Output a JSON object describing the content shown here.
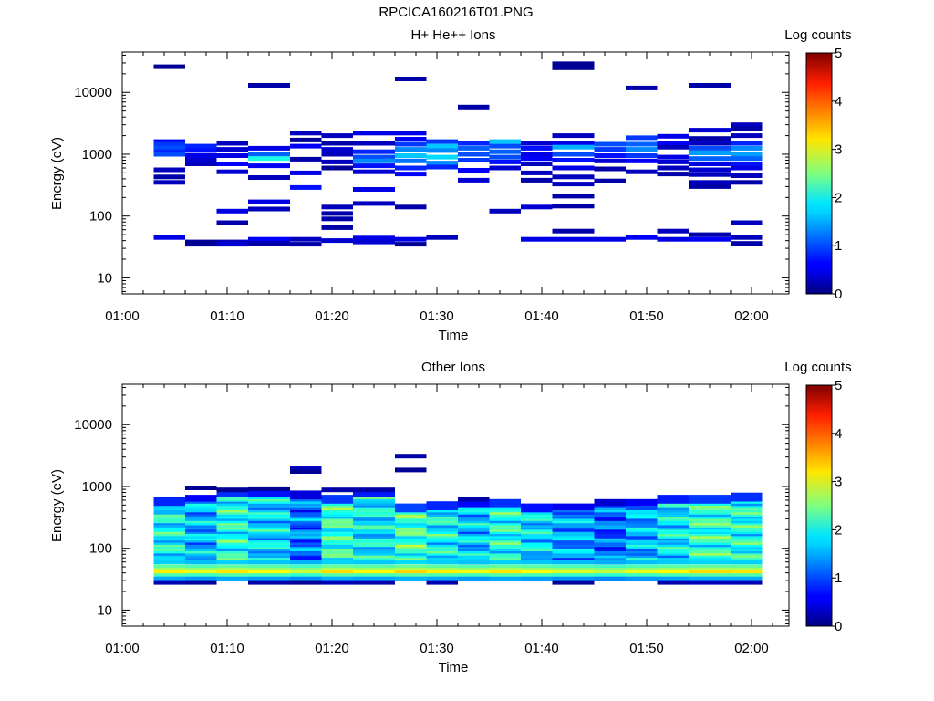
{
  "figure_title": "RPCICA160216T01.PNG",
  "chart_data": [
    {
      "type": "heatmap",
      "title": "H+ He++ Ions",
      "xlabel": "Time",
      "ylabel": "Energy (eV)",
      "colorbar_label": "Log counts",
      "x_ticks": [
        "01:00",
        "01:10",
        "01:20",
        "01:30",
        "01:40",
        "01:50",
        "02:00"
      ],
      "xlim_minutes": [
        0,
        63
      ],
      "y_scale": "log",
      "ylim": [
        5.5,
        45000
      ],
      "y_ticks": [
        10,
        100,
        1000,
        10000
      ],
      "y_tick_labels": [
        "10",
        "100",
        "1000",
        "10000"
      ],
      "colorbar_ticks": [
        "0",
        "1",
        "2",
        "3",
        "4",
        "5"
      ],
      "clim": [
        0,
        5
      ],
      "colormap": "jet",
      "bins_minutes": [
        [
          3,
          6
        ],
        [
          6,
          9
        ],
        [
          9,
          12
        ],
        [
          12,
          16
        ],
        [
          16,
          19
        ],
        [
          19,
          22
        ],
        [
          22,
          26
        ],
        [
          26,
          29
        ],
        [
          29,
          32
        ],
        [
          32,
          35
        ],
        [
          35,
          38
        ],
        [
          38,
          41
        ],
        [
          41,
          45
        ],
        [
          45,
          48
        ],
        [
          48,
          51
        ],
        [
          51,
          54
        ],
        [
          54,
          58
        ],
        [
          58,
          61
        ]
      ],
      "cells": [
        [
          0,
          26000,
          0.1
        ],
        [
          0,
          1600,
          0.6
        ],
        [
          0,
          1450,
          0.9
        ],
        [
          0,
          1250,
          1.0
        ],
        [
          0,
          1100,
          0.8
        ],
        [
          0,
          1000,
          1.0
        ],
        [
          0,
          560,
          0.3
        ],
        [
          0,
          430,
          0.2
        ],
        [
          0,
          350,
          0.3
        ],
        [
          0,
          45,
          0.5
        ],
        [
          1,
          1350,
          0.8
        ],
        [
          1,
          1150,
          0.7
        ],
        [
          1,
          950,
          0.5
        ],
        [
          1,
          800,
          0.4
        ],
        [
          1,
          700,
          0.3
        ],
        [
          1,
          38,
          0.1
        ],
        [
          1,
          35,
          0.1
        ],
        [
          2,
          1500,
          0.3
        ],
        [
          2,
          1200,
          0.4
        ],
        [
          2,
          950,
          0.5
        ],
        [
          2,
          700,
          0.6
        ],
        [
          2,
          520,
          0.4
        ],
        [
          2,
          120,
          0.5
        ],
        [
          2,
          78,
          0.2
        ],
        [
          2,
          38,
          0.3
        ],
        [
          2,
          35,
          0.4
        ],
        [
          3,
          13000,
          0.2
        ],
        [
          3,
          1250,
          0.5
        ],
        [
          3,
          1000,
          1.1
        ],
        [
          3,
          850,
          2.0
        ],
        [
          3,
          650,
          0.6
        ],
        [
          3,
          420,
          0.3
        ],
        [
          3,
          170,
          0.5
        ],
        [
          3,
          130,
          0.3
        ],
        [
          3,
          42,
          0.6
        ],
        [
          3,
          36,
          0.2
        ],
        [
          4,
          2200,
          0.3
        ],
        [
          4,
          1700,
          0.1
        ],
        [
          4,
          1350,
          0.6
        ],
        [
          4,
          830,
          0.2
        ],
        [
          4,
          500,
          0.5
        ],
        [
          4,
          290,
          0.7
        ],
        [
          4,
          42,
          0.3
        ],
        [
          4,
          35,
          0.2
        ],
        [
          5,
          2000,
          0.3
        ],
        [
          5,
          1500,
          0.2
        ],
        [
          5,
          1200,
          0.4
        ],
        [
          5,
          1000,
          0.3
        ],
        [
          5,
          750,
          0.3
        ],
        [
          5,
          600,
          0.1
        ],
        [
          5,
          140,
          0.3
        ],
        [
          5,
          110,
          0.2
        ],
        [
          5,
          90,
          0.2
        ],
        [
          5,
          65,
          0.2
        ],
        [
          5,
          40,
          0.4
        ],
        [
          6,
          2200,
          0.5
        ],
        [
          6,
          1500,
          0.3
        ],
        [
          6,
          1100,
          0.8
        ],
        [
          6,
          900,
          1.0
        ],
        [
          6,
          780,
          1.3
        ],
        [
          6,
          650,
          0.7
        ],
        [
          6,
          520,
          0.4
        ],
        [
          6,
          270,
          0.5
        ],
        [
          6,
          160,
          0.3
        ],
        [
          6,
          44,
          0.5
        ],
        [
          6,
          38,
          0.4
        ],
        [
          7,
          16500,
          0.2
        ],
        [
          7,
          2200,
          0.5
        ],
        [
          7,
          1750,
          0.6
        ],
        [
          7,
          1450,
          0.9
        ],
        [
          7,
          1200,
          1.3
        ],
        [
          7,
          950,
          1.6
        ],
        [
          7,
          780,
          1.2
        ],
        [
          7,
          600,
          0.8
        ],
        [
          7,
          480,
          0.6
        ],
        [
          7,
          140,
          0.2
        ],
        [
          7,
          42,
          0.5
        ],
        [
          7,
          35,
          0.1
        ],
        [
          8,
          1600,
          0.9
        ],
        [
          8,
          1350,
          1.6
        ],
        [
          8,
          1150,
          1.3
        ],
        [
          8,
          900,
          1.7
        ],
        [
          8,
          720,
          1.3
        ],
        [
          8,
          620,
          0.8
        ],
        [
          8,
          45,
          0.3
        ],
        [
          9,
          5800,
          0.2
        ],
        [
          9,
          1500,
          0.8
        ],
        [
          9,
          1250,
          1.1
        ],
        [
          9,
          1000,
          1.0
        ],
        [
          9,
          800,
          0.9
        ],
        [
          9,
          550,
          0.6
        ],
        [
          9,
          380,
          0.4
        ],
        [
          10,
          1600,
          1.6
        ],
        [
          10,
          1350,
          1.0
        ],
        [
          10,
          1100,
          1.1
        ],
        [
          10,
          900,
          1.0
        ],
        [
          10,
          750,
          0.7
        ],
        [
          10,
          600,
          0.4
        ],
        [
          10,
          120,
          0.3
        ],
        [
          11,
          1500,
          0.4
        ],
        [
          11,
          1250,
          0.7
        ],
        [
          11,
          1000,
          0.5
        ],
        [
          11,
          850,
          0.6
        ],
        [
          11,
          700,
          0.3
        ],
        [
          11,
          500,
          0.3
        ],
        [
          11,
          380,
          0.2
        ],
        [
          11,
          140,
          0.4
        ],
        [
          11,
          42,
          0.5
        ],
        [
          12,
          29000,
          0.1
        ],
        [
          12,
          25000,
          0.1
        ],
        [
          12,
          2000,
          0.3
        ],
        [
          12,
          1500,
          0.5
        ],
        [
          12,
          1300,
          1.5
        ],
        [
          12,
          1000,
          1.0
        ],
        [
          12,
          800,
          0.7
        ],
        [
          12,
          600,
          0.5
        ],
        [
          12,
          430,
          0.3
        ],
        [
          12,
          330,
          0.3
        ],
        [
          12,
          210,
          0.2
        ],
        [
          12,
          145,
          0.2
        ],
        [
          12,
          57,
          0.2
        ],
        [
          12,
          42,
          0.5
        ],
        [
          13,
          1450,
          1.0
        ],
        [
          13,
          1200,
          0.9
        ],
        [
          13,
          950,
          0.7
        ],
        [
          13,
          780,
          0.4
        ],
        [
          13,
          580,
          0.2
        ],
        [
          13,
          370,
          0.2
        ],
        [
          13,
          42,
          0.5
        ],
        [
          14,
          1850,
          0.9
        ],
        [
          14,
          1450,
          1.1
        ],
        [
          14,
          1200,
          1.3
        ],
        [
          14,
          950,
          0.9
        ],
        [
          14,
          780,
          0.6
        ],
        [
          14,
          11800,
          0.2
        ],
        [
          14,
          520,
          0.3
        ],
        [
          14,
          45,
          0.6
        ],
        [
          15,
          1950,
          0.5
        ],
        [
          15,
          1500,
          0.6
        ],
        [
          15,
          1300,
          0.3
        ],
        [
          15,
          900,
          0.5
        ],
        [
          15,
          750,
          0.4
        ],
        [
          15,
          600,
          0.3
        ],
        [
          15,
          480,
          0.2
        ],
        [
          15,
          57,
          0.3
        ],
        [
          15,
          42,
          0.5
        ],
        [
          16,
          13000,
          0.2
        ],
        [
          16,
          2450,
          0.4
        ],
        [
          16,
          1800,
          0.2
        ],
        [
          16,
          1500,
          0.3
        ],
        [
          16,
          1250,
          1.0
        ],
        [
          16,
          1050,
          1.4
        ],
        [
          16,
          850,
          1.1
        ],
        [
          16,
          700,
          0.5
        ],
        [
          16,
          560,
          0.4
        ],
        [
          16,
          470,
          0.3
        ],
        [
          16,
          350,
          0.3
        ],
        [
          16,
          300,
          0.2
        ],
        [
          16,
          50,
          0.2
        ],
        [
          16,
          42,
          0.6
        ],
        [
          17,
          3000,
          0.3
        ],
        [
          17,
          2600,
          0.2
        ],
        [
          17,
          2000,
          0.3
        ],
        [
          17,
          1500,
          0.8
        ],
        [
          17,
          1250,
          1.3
        ],
        [
          17,
          1000,
          1.4
        ],
        [
          17,
          850,
          1.1
        ],
        [
          17,
          700,
          0.7
        ],
        [
          17,
          600,
          0.5
        ],
        [
          17,
          450,
          0.3
        ],
        [
          17,
          350,
          0.2
        ],
        [
          17,
          78,
          0.3
        ],
        [
          17,
          45,
          0.3
        ],
        [
          17,
          36,
          0.2
        ]
      ]
    },
    {
      "type": "heatmap",
      "title": "Other Ions",
      "xlabel": "Time",
      "ylabel": "Energy (eV)",
      "colorbar_label": "Log counts",
      "x_ticks": [
        "01:00",
        "01:10",
        "01:20",
        "01:30",
        "01:40",
        "01:50",
        "02:00"
      ],
      "xlim_minutes": [
        0,
        63
      ],
      "y_scale": "log",
      "ylim": [
        5.5,
        45000
      ],
      "y_ticks": [
        10,
        100,
        1000,
        10000
      ],
      "y_tick_labels": [
        "10",
        "100",
        "1000",
        "10000"
      ],
      "colorbar_ticks": [
        "0",
        "1",
        "2",
        "3",
        "4",
        "5"
      ],
      "clim": [
        0,
        5
      ],
      "colormap": "jet",
      "bins_minutes": [
        [
          3,
          6
        ],
        [
          6,
          9
        ],
        [
          9,
          12
        ],
        [
          12,
          16
        ],
        [
          16,
          19
        ],
        [
          19,
          22
        ],
        [
          22,
          26
        ],
        [
          26,
          29
        ],
        [
          29,
          32
        ],
        [
          32,
          35
        ],
        [
          35,
          38
        ],
        [
          38,
          41
        ],
        [
          41,
          45
        ],
        [
          45,
          48
        ],
        [
          48,
          51
        ],
        [
          51,
          54
        ],
        [
          54,
          58
        ],
        [
          58,
          61
        ]
      ],
      "col_top_eV": [
        650,
        720,
        850,
        900,
        800,
        700,
        850,
        500,
        560,
        600,
        580,
        500,
        520,
        620,
        620,
        680,
        680,
        750
      ],
      "col_offsets": [
        0.2,
        -0.2,
        0.3,
        0.0,
        -0.5,
        0.4,
        0.1,
        0.5,
        0.2,
        -0.1,
        0.3,
        0.0,
        -0.3,
        -0.6,
        -0.2,
        0.1,
        0.4,
        0.3
      ],
      "low_energy_profile": [
        [
          60,
          1.6
        ],
        [
          50,
          2.3
        ],
        [
          44,
          2.7
        ],
        [
          40,
          3.1
        ],
        [
          36,
          2.2
        ],
        [
          32,
          1.4
        ],
        [
          28,
          0.2
        ]
      ],
      "cells": [
        [
          1,
          950,
          0.1
        ],
        [
          2,
          880,
          0.1
        ],
        [
          3,
          920,
          0.1
        ],
        [
          4,
          1950,
          0.3
        ],
        [
          4,
          1750,
          0.1
        ],
        [
          5,
          880,
          0.2
        ],
        [
          6,
          880,
          0.2
        ],
        [
          7,
          3100,
          0.2
        ],
        [
          7,
          1850,
          0.1
        ],
        [
          9,
          620,
          0.2
        ]
      ]
    }
  ]
}
